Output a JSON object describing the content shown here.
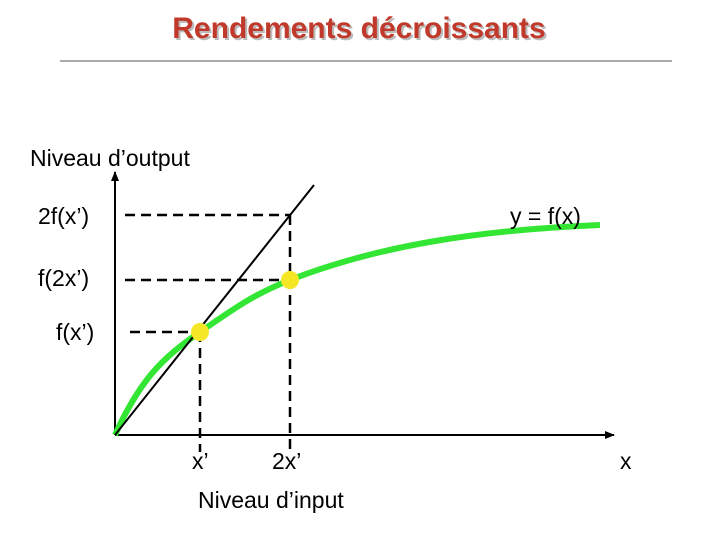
{
  "title": "Rendements décroissants",
  "axes": {
    "y_label": "Niveau d’output",
    "x_label": "Niveau d’input",
    "x_end_label": "x"
  },
  "curve_label": "y = f(x)",
  "y_marks": [
    "2f(x’)",
    "f(2x’)",
    "f(x’)"
  ],
  "x_marks": [
    "x’",
    "2x’"
  ]
}
